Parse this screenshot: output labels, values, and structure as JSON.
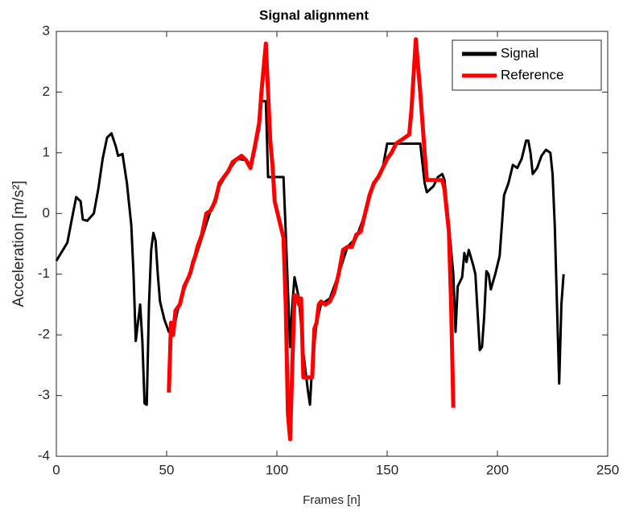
{
  "chart_data": {
    "type": "line",
    "title": "Signal alignment",
    "x_label": "Frames [n]",
    "y_label": "Acceleration [m/s²]",
    "xlim": [
      0,
      250
    ],
    "xticks": [
      0,
      50,
      100,
      150,
      200,
      250
    ],
    "ylim": [
      -4,
      3
    ],
    "yticks": [
      -4,
      -3,
      -2,
      -1,
      0,
      1,
      2,
      3
    ],
    "legend": "upper right",
    "series": [
      {
        "name": "Signal",
        "color": "#000000",
        "x": [
          0,
          3,
          5,
          7,
          9,
          11,
          12,
          14,
          17,
          19,
          21,
          23,
          25,
          27,
          28,
          30,
          32,
          34,
          35,
          36,
          37,
          38,
          39,
          40,
          41,
          42,
          43,
          44,
          45,
          46,
          47,
          49,
          51,
          53,
          55,
          58,
          62,
          66,
          70,
          74,
          78,
          82,
          86,
          88,
          90,
          92,
          93,
          95,
          96,
          103,
          104,
          106,
          107,
          108,
          110,
          112,
          114,
          115,
          116,
          118,
          120,
          124,
          128,
          132,
          136,
          140,
          144,
          148,
          150,
          165,
          167,
          168,
          171,
          173,
          175,
          176,
          178,
          180,
          181,
          182,
          184,
          185,
          186,
          187,
          189,
          190,
          192,
          193,
          194,
          195,
          196,
          197,
          199,
          201,
          203,
          205,
          207,
          209,
          211,
          213,
          214,
          215,
          216,
          218,
          220,
          222,
          224,
          225,
          226,
          227,
          228,
          229,
          230
        ],
        "values": [
          -0.78,
          -0.6,
          -0.48,
          -0.1,
          0.27,
          0.2,
          -0.1,
          -0.12,
          0.0,
          0.4,
          0.9,
          1.25,
          1.32,
          1.1,
          0.95,
          0.98,
          0.5,
          -0.2,
          -1.0,
          -2.1,
          -1.8,
          -1.5,
          -2.1,
          -3.13,
          -3.15,
          -1.5,
          -0.6,
          -0.32,
          -0.45,
          -1.0,
          -1.45,
          -1.75,
          -1.95,
          -1.95,
          -1.6,
          -1.25,
          -0.85,
          -0.4,
          0.05,
          0.45,
          0.7,
          0.9,
          0.88,
          0.8,
          1.05,
          1.4,
          1.85,
          1.85,
          0.6,
          0.6,
          -0.3,
          -2.2,
          -1.5,
          -1.05,
          -1.4,
          -2.3,
          -2.9,
          -3.15,
          -2.5,
          -1.8,
          -1.5,
          -1.4,
          -1.0,
          -0.55,
          -0.4,
          0.0,
          0.5,
          0.75,
          1.15,
          1.15,
          0.5,
          0.35,
          0.45,
          0.6,
          0.65,
          0.55,
          -0.2,
          -1.0,
          -1.95,
          -1.2,
          -1.05,
          -0.65,
          -0.8,
          -0.6,
          -0.85,
          -1.0,
          -2.25,
          -2.2,
          -1.7,
          -0.95,
          -1.0,
          -1.25,
          -1.0,
          -0.7,
          0.3,
          0.5,
          0.8,
          0.75,
          0.9,
          1.2,
          1.2,
          1.0,
          0.65,
          0.75,
          0.95,
          1.05,
          1.0,
          0.65,
          -0.2,
          -1.5,
          -2.8,
          -1.5,
          -1.0
        ]
      },
      {
        "name": "Reference",
        "color": "#ff0000",
        "x": [
          51,
          52,
          53,
          54,
          56,
          58,
          60,
          61,
          62,
          63,
          64,
          66,
          68,
          70,
          72,
          74,
          76,
          78,
          80,
          82,
          84,
          86,
          88,
          90,
          92,
          93,
          95,
          96,
          97,
          98,
          99,
          101,
          103,
          104,
          105,
          106,
          107,
          108,
          109,
          110,
          111,
          112,
          116,
          117,
          118,
          119,
          120,
          122,
          124,
          126,
          128,
          130,
          132,
          134,
          136,
          138,
          140,
          142,
          144,
          146,
          148,
          150,
          152,
          154,
          156,
          158,
          160,
          161,
          163,
          165,
          166,
          167,
          168,
          170,
          172,
          175,
          176,
          178,
          179,
          180
        ],
        "values": [
          -2.95,
          -1.8,
          -2.0,
          -1.6,
          -1.5,
          -1.2,
          -1.05,
          -0.95,
          -0.8,
          -0.7,
          -0.55,
          -0.35,
          0.0,
          0.05,
          0.2,
          0.5,
          0.6,
          0.7,
          0.85,
          0.9,
          0.95,
          0.88,
          0.75,
          1.1,
          1.5,
          2.0,
          2.8,
          2.0,
          1.2,
          0.8,
          0.2,
          -0.1,
          -0.4,
          -1.5,
          -3.3,
          -3.72,
          -2.5,
          -1.35,
          -1.35,
          -1.5,
          -1.4,
          -2.7,
          -2.7,
          -1.9,
          -1.8,
          -1.5,
          -1.45,
          -1.5,
          -1.45,
          -1.3,
          -1.0,
          -0.6,
          -0.55,
          -0.55,
          -0.35,
          -0.3,
          0.0,
          0.3,
          0.5,
          0.6,
          0.75,
          0.9,
          1.0,
          1.15,
          1.2,
          1.25,
          1.3,
          1.7,
          2.87,
          2.0,
          1.5,
          1.0,
          0.55,
          0.55,
          0.55,
          0.55,
          0.4,
          -0.3,
          -1.5,
          -3.2
        ]
      }
    ]
  }
}
